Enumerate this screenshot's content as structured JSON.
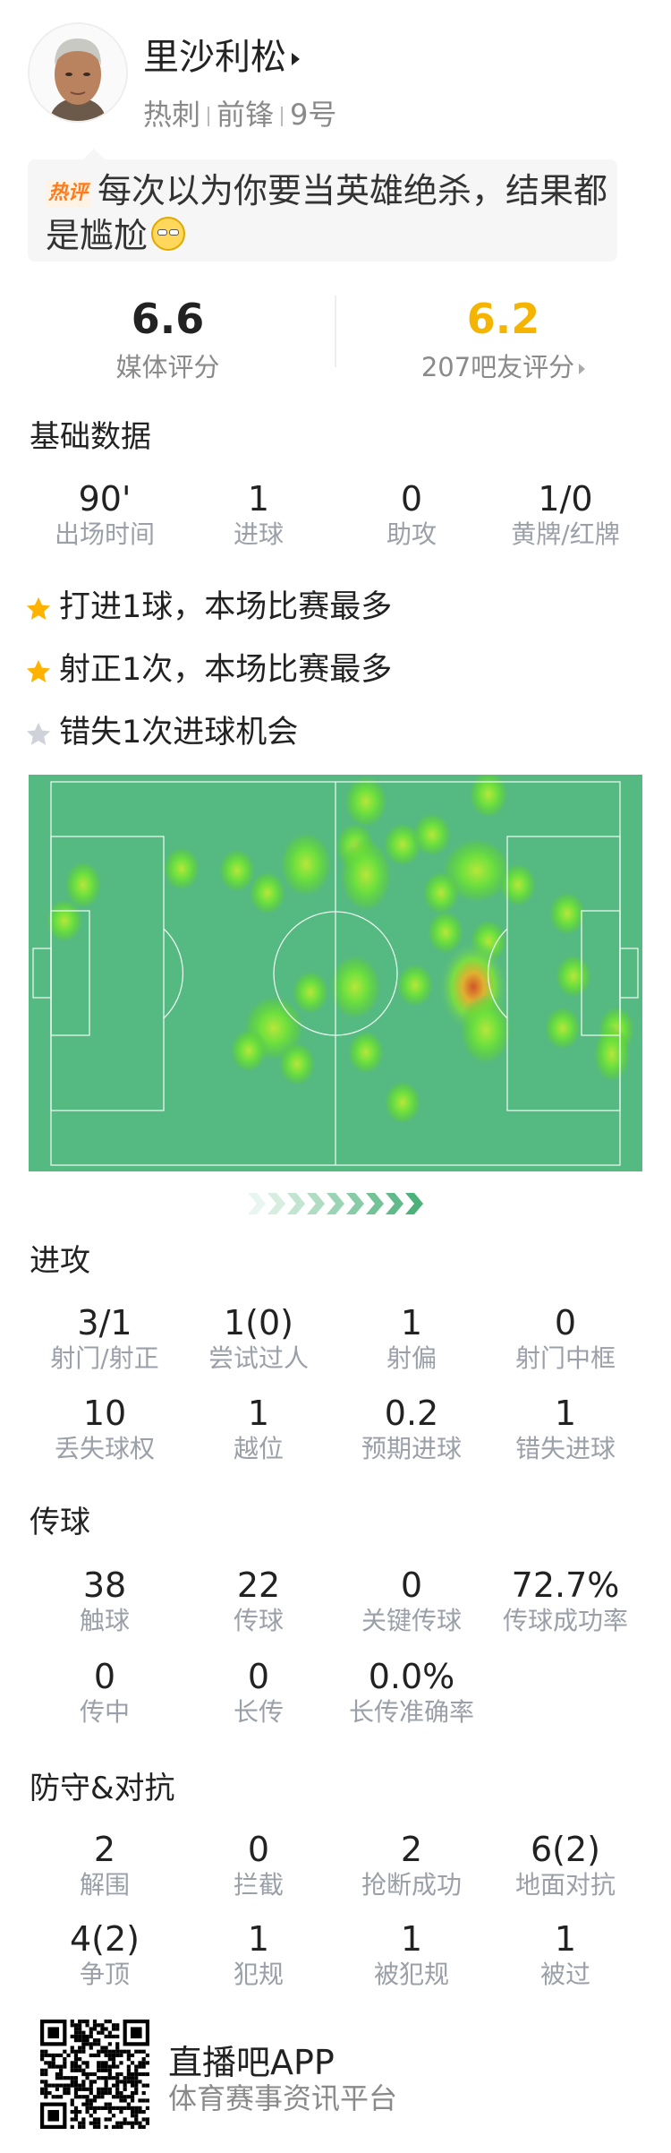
{
  "player": {
    "name": "里沙利松",
    "team": "热刺",
    "position": "前锋",
    "number": "9号"
  },
  "hot_comment": {
    "badge": "热评",
    "text": "每次以为你要当英雄绝杀，结果都是尴尬",
    "emoji": "smirking-cat-emoji"
  },
  "ratings": {
    "media": {
      "value": "6.6",
      "label": "媒体评分"
    },
    "fans": {
      "value": "6.2",
      "label": "207吧友评分"
    }
  },
  "basic": {
    "title": "基础数据",
    "stats": [
      {
        "value": "90'",
        "label": "出场时间"
      },
      {
        "value": "1",
        "label": "进球"
      },
      {
        "value": "0",
        "label": "助攻"
      },
      {
        "value": "1/0",
        "label": "黄牌/红牌"
      }
    ]
  },
  "highlights": [
    {
      "text": "打进1球，本场比赛最多",
      "star": "gold"
    },
    {
      "text": "射正1次，本场比赛最多",
      "star": "gold"
    },
    {
      "text": "错失1次进球机会",
      "star": "gray"
    }
  ],
  "heatmap": {
    "attack_direction": "right"
  },
  "sections": [
    {
      "title": "进攻",
      "stats": [
        {
          "value": "3/1",
          "label": "射门/射正"
        },
        {
          "value": "1(0)",
          "label": "尝试过人"
        },
        {
          "value": "1",
          "label": "射偏"
        },
        {
          "value": "0",
          "label": "射门中框"
        },
        {
          "value": "10",
          "label": "丢失球权"
        },
        {
          "value": "1",
          "label": "越位"
        },
        {
          "value": "0.2",
          "label": "预期进球"
        },
        {
          "value": "1",
          "label": "错失进球"
        }
      ]
    },
    {
      "title": "传球",
      "stats": [
        {
          "value": "38",
          "label": "触球"
        },
        {
          "value": "22",
          "label": "传球"
        },
        {
          "value": "0",
          "label": "关键传球"
        },
        {
          "value": "72.7%",
          "label": "传球成功率"
        },
        {
          "value": "0",
          "label": "传中"
        },
        {
          "value": "0",
          "label": "长传"
        },
        {
          "value": "0.0%",
          "label": "长传准确率"
        }
      ]
    },
    {
      "title": "防守&对抗",
      "stats": [
        {
          "value": "2",
          "label": "解围"
        },
        {
          "value": "0",
          "label": "拦截"
        },
        {
          "value": "2",
          "label": "抢断成功"
        },
        {
          "value": "6(2)",
          "label": "地面对抗"
        },
        {
          "value": "4(2)",
          "label": "争顶"
        },
        {
          "value": "1",
          "label": "犯规"
        },
        {
          "value": "1",
          "label": "被犯规"
        },
        {
          "value": "1",
          "label": "被过"
        }
      ]
    }
  ],
  "footer": {
    "app_name": "直播吧APP",
    "tagline": "体育赛事资讯平台"
  },
  "colors": {
    "fan_rating": "#f5b400",
    "star_gold": "#ffb300",
    "star_gray": "#cfd2d8",
    "pitch": "#55b982",
    "label": "#9ba0a8"
  }
}
